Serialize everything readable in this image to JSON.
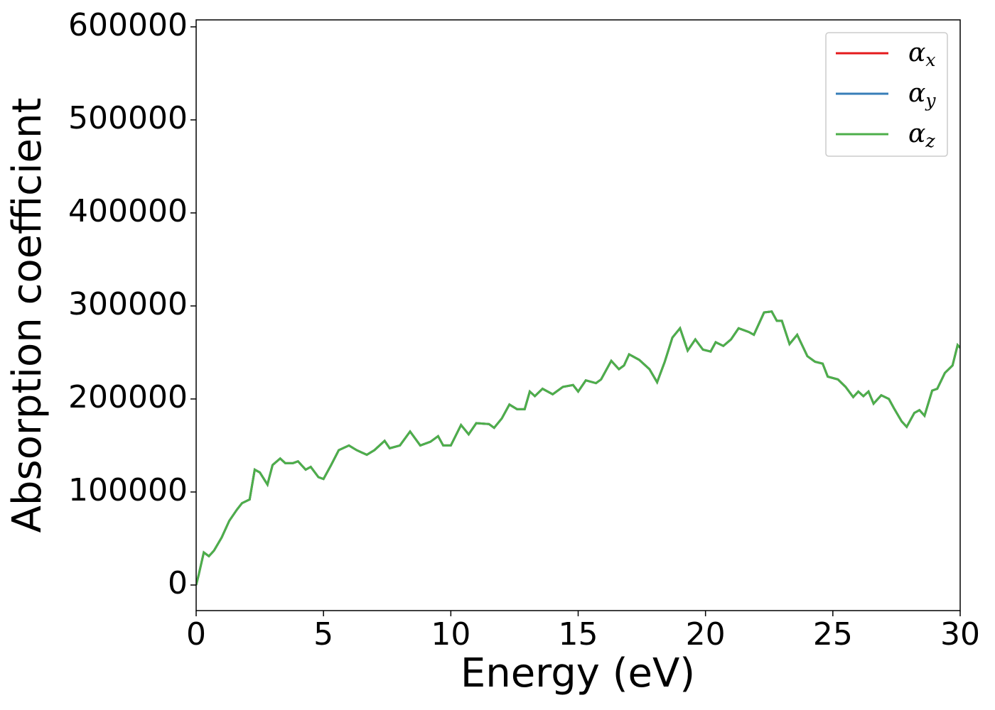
{
  "chart_data": {
    "type": "line",
    "xlabel": "Energy (eV)",
    "ylabel": "Absorption coefficient",
    "x": [
      0,
      0.1,
      0.3,
      0.5,
      0.7,
      1.0,
      1.3,
      1.6,
      1.8,
      2.1,
      2.3,
      2.5,
      2.8,
      3.0,
      3.3,
      3.5,
      3.8,
      4.0,
      4.3,
      4.5,
      4.8,
      5.0,
      5.3,
      5.6,
      6.0,
      6.3,
      6.7,
      7.0,
      7.4,
      7.6,
      8.0,
      8.4,
      8.8,
      9.2,
      9.5,
      9.7,
      10.0,
      10.4,
      10.7,
      11.0,
      11.5,
      11.7,
      12.0,
      12.3,
      12.6,
      12.9,
      13.1,
      13.3,
      13.6,
      14.0,
      14.4,
      14.8,
      15.0,
      15.3,
      15.7,
      15.9,
      16.3,
      16.6,
      16.8,
      17.0,
      17.4,
      17.8,
      18.1,
      18.4,
      18.7,
      19.0,
      19.3,
      19.6,
      19.9,
      20.2,
      20.4,
      20.7,
      21.0,
      21.3,
      21.7,
      21.9,
      22.3,
      22.6,
      22.8,
      23.0,
      23.3,
      23.6,
      24.0,
      24.3,
      24.6,
      24.8,
      25.2,
      25.5,
      25.8,
      26.0,
      26.2,
      26.4,
      26.6,
      26.9,
      27.2,
      27.4,
      27.7,
      27.9,
      28.2,
      28.4,
      28.6,
      28.9,
      29.1,
      29.4,
      29.7,
      29.9,
      30.0
    ],
    "series": [
      {
        "name": "αx",
        "color": "#e41a1c",
        "values": [
          0,
          11000,
          35000,
          31000,
          37000,
          51000,
          69000,
          81000,
          88000,
          92000,
          124000,
          121000,
          108000,
          129000,
          136000,
          131000,
          131000,
          133000,
          124000,
          127000,
          116000,
          114000,
          129000,
          145000,
          150000,
          145000,
          140000,
          145000,
          155000,
          147000,
          150000,
          165000,
          150000,
          154000,
          160000,
          150000,
          150000,
          172000,
          162000,
          174000,
          173000,
          169000,
          179000,
          194000,
          189000,
          189000,
          208000,
          203000,
          211000,
          205000,
          213000,
          215000,
          208000,
          220000,
          217000,
          221000,
          241000,
          232000,
          236000,
          248000,
          242000,
          232000,
          218000,
          240000,
          266000,
          276000,
          252000,
          264000,
          253000,
          251000,
          261000,
          257000,
          264000,
          276000,
          272000,
          269000,
          293000,
          294000,
          284000,
          284000,
          259000,
          269000,
          246000,
          240000,
          238000,
          224000,
          221000,
          213000,
          202000,
          208000,
          203000,
          208000,
          195000,
          204000,
          200000,
          190000,
          176000,
          170000,
          185000,
          188000,
          182000,
          209000,
          211000,
          228000,
          236000,
          258000,
          255000
        ]
      },
      {
        "name": "αy",
        "color": "#377eb8",
        "values": [
          0,
          11000,
          35000,
          31000,
          37000,
          51000,
          69000,
          81000,
          88000,
          92000,
          124000,
          121000,
          108000,
          129000,
          136000,
          131000,
          131000,
          133000,
          124000,
          127000,
          116000,
          114000,
          129000,
          145000,
          150000,
          145000,
          140000,
          145000,
          155000,
          147000,
          150000,
          165000,
          150000,
          154000,
          160000,
          150000,
          150000,
          172000,
          162000,
          174000,
          173000,
          169000,
          179000,
          194000,
          189000,
          189000,
          208000,
          203000,
          211000,
          205000,
          213000,
          215000,
          208000,
          220000,
          217000,
          221000,
          241000,
          232000,
          236000,
          248000,
          242000,
          232000,
          218000,
          240000,
          266000,
          276000,
          252000,
          264000,
          253000,
          251000,
          261000,
          257000,
          264000,
          276000,
          272000,
          269000,
          293000,
          294000,
          284000,
          284000,
          259000,
          269000,
          246000,
          240000,
          238000,
          224000,
          221000,
          213000,
          202000,
          208000,
          203000,
          208000,
          195000,
          204000,
          200000,
          190000,
          176000,
          170000,
          185000,
          188000,
          182000,
          209000,
          211000,
          228000,
          236000,
          258000,
          255000
        ]
      },
      {
        "name": "αz",
        "color": "#4daf4a",
        "values": [
          0,
          11000,
          35000,
          31000,
          37000,
          51000,
          69000,
          81000,
          88000,
          92000,
          124000,
          121000,
          108000,
          129000,
          136000,
          131000,
          131000,
          133000,
          124000,
          127000,
          116000,
          114000,
          129000,
          145000,
          150000,
          145000,
          140000,
          145000,
          155000,
          147000,
          150000,
          165000,
          150000,
          154000,
          160000,
          150000,
          150000,
          172000,
          162000,
          174000,
          173000,
          169000,
          179000,
          194000,
          189000,
          189000,
          208000,
          203000,
          211000,
          205000,
          213000,
          215000,
          208000,
          220000,
          217000,
          221000,
          241000,
          232000,
          236000,
          248000,
          242000,
          232000,
          218000,
          240000,
          266000,
          276000,
          252000,
          264000,
          253000,
          251000,
          261000,
          257000,
          264000,
          276000,
          272000,
          269000,
          293000,
          294000,
          284000,
          284000,
          259000,
          269000,
          246000,
          240000,
          238000,
          224000,
          221000,
          213000,
          202000,
          208000,
          203000,
          208000,
          195000,
          204000,
          200000,
          190000,
          176000,
          170000,
          185000,
          188000,
          182000,
          209000,
          211000,
          228000,
          236000,
          258000,
          255000
        ]
      }
    ],
    "xlim": [
      0,
      30
    ],
    "xticks": [
      0,
      5,
      10,
      15,
      20,
      25,
      30
    ],
    "ylim": [
      -27500,
      607500
    ],
    "yticks": [
      0,
      100000,
      200000,
      300000,
      400000,
      500000,
      600000
    ],
    "grid": false,
    "legend": "upper right"
  }
}
